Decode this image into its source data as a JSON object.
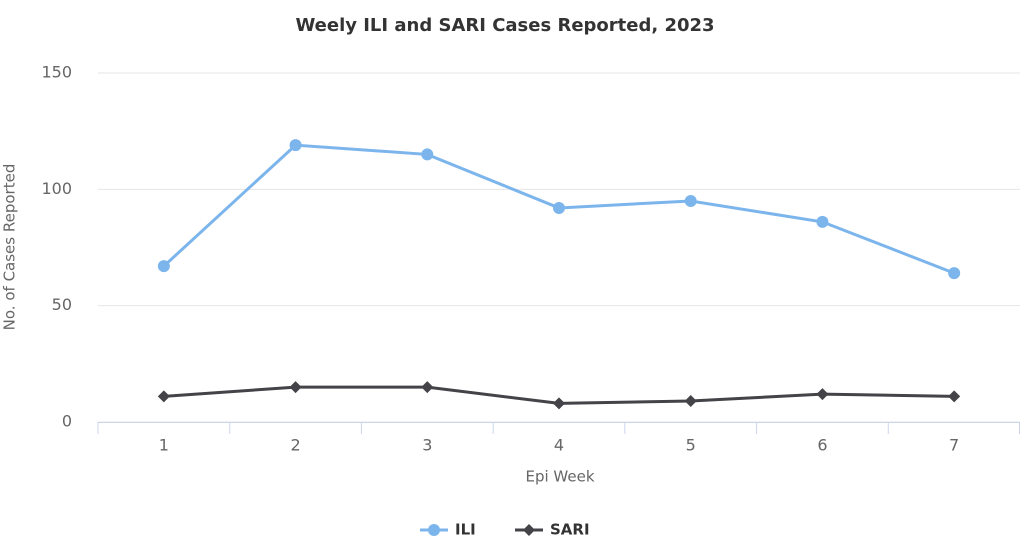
{
  "chart_data": {
    "type": "line",
    "title": "Weely ILI and SARI Cases Reported, 2023",
    "x_label": "Epi Week",
    "y_label": "No. of Cases Reported",
    "categories": [
      "1",
      "2",
      "3",
      "4",
      "5",
      "6",
      "7"
    ],
    "series": [
      {
        "name": "ILI",
        "color": "#7cb5ec",
        "marker": "circle",
        "values": [
          67,
          119,
          115,
          92,
          95,
          86,
          64
        ]
      },
      {
        "name": "SARI",
        "color": "#434348",
        "marker": "diamond",
        "values": [
          11,
          15,
          15,
          8,
          9,
          12,
          11
        ]
      }
    ],
    "ylim": [
      0,
      150
    ],
    "yticks": [
      0,
      50,
      100,
      150
    ],
    "grid": true,
    "legend": "bottom"
  }
}
